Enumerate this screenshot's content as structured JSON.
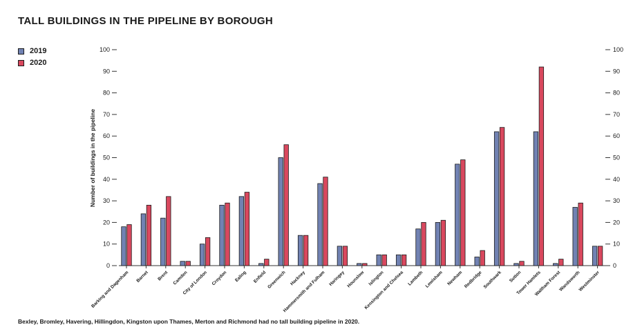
{
  "chart_data": {
    "type": "bar",
    "title": "TALL BUILDINGS IN THE PIPELINE BY BOROUGH",
    "ylabel": "Number of buildings in the pipeline",
    "xlabel": "",
    "ylim": [
      0,
      100
    ],
    "yticks": [
      0,
      10,
      20,
      30,
      40,
      50,
      60,
      70,
      80,
      90,
      100
    ],
    "legend_position": "top-left",
    "categories": [
      "Barking and Dagenham",
      "Barnet",
      "Brent",
      "Camden",
      "City of London",
      "Croydon",
      "Ealing",
      "Enfield",
      "Greenwich",
      "Hackney",
      "Hammersmith and Fulham",
      "Haringey",
      "Hounslow",
      "Islington",
      "Kensington and Chelsea",
      "Lambeth",
      "Lewisham",
      "Newham",
      "Redbridge",
      "Southwark",
      "Sutton",
      "Tower Hamlets",
      "Waltham Forest",
      "Wandsworth",
      "Westminster"
    ],
    "series": [
      {
        "name": "2019",
        "color": "#7182b3",
        "values": [
          18,
          24,
          22,
          2,
          10,
          28,
          32,
          1,
          50,
          14,
          38,
          9,
          1,
          5,
          5,
          17,
          20,
          47,
          4,
          62,
          1,
          62,
          1,
          27,
          9
        ]
      },
      {
        "name": "2020",
        "color": "#d9485e",
        "values": [
          19,
          28,
          32,
          2,
          13,
          29,
          34,
          3,
          56,
          14,
          41,
          9,
          1,
          5,
          5,
          20,
          21,
          49,
          7,
          64,
          2,
          92,
          3,
          29,
          9
        ]
      }
    ]
  },
  "footnote": "Bexley, Bromley, Havering, Hillingdon, Kingston upon Thames, Merton and Richmond had no tall building pipeline in 2020."
}
